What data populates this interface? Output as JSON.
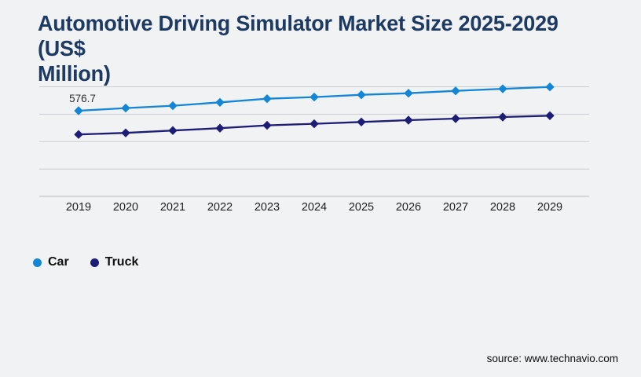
{
  "header": {
    "title": "Automotive Driving Simulator Market Size 2025-2029 (US$ Million)",
    "title_lines": [
      "Automotive Driving Simulator Market Size 2025-2029 (US$",
      "Million)"
    ],
    "title_color": "#1d3a63"
  },
  "chart_data": {
    "type": "line",
    "title": "Automotive Driving Simulator Market Size 2025-2029 (US$ Million)",
    "categories": [
      "2019",
      "2020",
      "2021",
      "2022",
      "2023",
      "2024",
      "2025",
      "2026",
      "2027",
      "2028",
      "2029"
    ],
    "series": [
      {
        "name": "Car",
        "color": "#1386d6",
        "values": [
          576.7,
          594.6,
          610.4,
          633.1,
          657.9,
          668.5,
          684.3,
          694.8,
          710.7,
          724.4,
          737.1
        ],
        "labeled_point": {
          "index": 0,
          "label": "576.7"
        }
      },
      {
        "name": "Truck",
        "color": "#1e1d75",
        "values": [
          416.8,
          427.4,
          443.2,
          459.0,
          478.5,
          489.1,
          501.2,
          513.4,
          523.9,
          534.5,
          543.4
        ]
      }
    ],
    "ylim": [
      0,
      850
    ],
    "grid": "horizontal",
    "gridline_color": "#cbccd0",
    "marker": "diamond",
    "legend_position": "bottom-left",
    "visible_value_labels": [
      "576.7"
    ]
  },
  "legend": {
    "items": [
      {
        "label": "Car",
        "color": "#1386d6"
      },
      {
        "label": "Truck",
        "color": "#1e1d75"
      }
    ]
  },
  "footer": {
    "source": "source: www.technavio.com"
  }
}
